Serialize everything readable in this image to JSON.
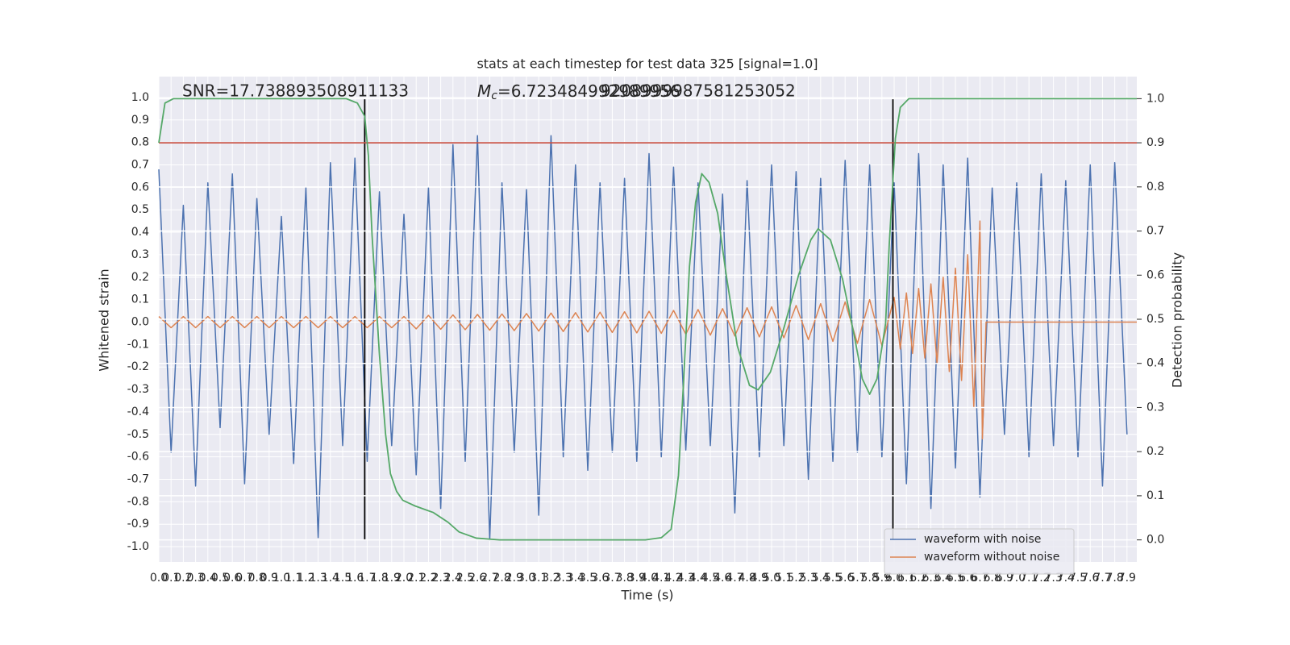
{
  "chart_data": {
    "type": "line",
    "title": "stats at each timestep for test data 325 [signal=1.0]",
    "x_label": "Time (s)",
    "y_label": "Whitened strain",
    "y2_label": "Detection probability",
    "annotations": [
      "SNR=17.738893508911133",
      "9208999987581253052"
    ],
    "mc_annotation": {
      "symbol": "M",
      "subscript": "c",
      "text": "=6.723484992989956"
    },
    "xlim": [
      0,
      7.98
    ],
    "ylim": [
      -1.068,
      1.093
    ],
    "y2lim": [
      -0.05,
      1.05
    ],
    "xticks": [
      {
        "value": 0,
        "label": "0.0"
      },
      0.1,
      0.2,
      0.3,
      0.4,
      0.5,
      0.6,
      0.7,
      0.8,
      0.9,
      {
        "value": 1,
        "label": "1.0"
      },
      1.1,
      1.2,
      1.3,
      1.4,
      1.5,
      1.6,
      1.7,
      1.8,
      1.9,
      {
        "value": 2,
        "label": "2.0"
      },
      2.1,
      2.2,
      2.3,
      2.4,
      2.5,
      2.6,
      2.7,
      2.8,
      2.9,
      {
        "value": 3,
        "label": "3.0"
      },
      3.1,
      3.2,
      3.3,
      3.4,
      3.5,
      3.6,
      3.7,
      3.8,
      3.9,
      {
        "value": 4,
        "label": "4.0"
      },
      4.1,
      4.2,
      4.3,
      4.4,
      4.5,
      4.6,
      4.7,
      4.8,
      4.9,
      {
        "value": 5,
        "label": "5.0"
      },
      5.1,
      5.2,
      5.3,
      5.4,
      5.5,
      5.6,
      5.7,
      5.8,
      5.9,
      {
        "value": 6,
        "label": "6.0"
      },
      6.1,
      6.2,
      6.3,
      6.4,
      6.5,
      6.6,
      6.7,
      6.8,
      6.9,
      {
        "value": 7,
        "label": "7.0"
      },
      7.1,
      7.2,
      7.3,
      7.4,
      7.5,
      7.6,
      7.7,
      7.8,
      7.9
    ],
    "yticks": [
      {
        "value": -1,
        "label": "-1.0"
      },
      -0.9,
      -0.8,
      -0.7,
      -0.6,
      -0.5,
      -0.4,
      -0.3,
      -0.2,
      -0.1,
      {
        "value": 0,
        "label": "0.0"
      },
      0.1,
      0.2,
      0.3,
      0.4,
      0.5,
      0.6,
      0.7,
      0.8,
      0.9,
      {
        "value": 1,
        "label": "1.0"
      }
    ],
    "y2ticks": [
      {
        "value": 0,
        "label": "0.0"
      },
      0.1,
      0.2,
      0.3,
      0.4,
      0.5,
      0.6,
      0.7,
      0.8,
      0.9,
      {
        "value": 1,
        "label": "1.0"
      }
    ],
    "grid": true,
    "legend": "lower right",
    "vlines": [
      1.68,
      5.99
    ],
    "vline_color": "#000000",
    "threshold": 0.9,
    "threshold_color": "#c0392b",
    "series": [
      {
        "name": "waveform with noise",
        "color": "#4c72b0",
        "x": [
          0,
          0.1,
          0.2,
          0.3,
          0.4,
          0.5,
          0.6,
          0.7,
          0.8,
          0.9,
          1,
          1.1,
          1.2,
          1.3,
          1.4,
          1.5,
          1.6,
          1.7,
          1.8,
          1.9,
          2,
          2.1,
          2.2,
          2.3,
          2.4,
          2.5,
          2.6,
          2.7,
          2.8,
          2.9,
          3,
          3.1,
          3.2,
          3.3,
          3.4,
          3.5,
          3.6,
          3.7,
          3.8,
          3.9,
          4,
          4.1,
          4.2,
          4.3,
          4.4,
          4.5,
          4.6,
          4.7,
          4.8,
          4.9,
          5,
          5.1,
          5.2,
          5.3,
          5.4,
          5.5,
          5.6,
          5.7,
          5.8,
          5.9,
          6,
          6.1,
          6.2,
          6.3,
          6.4,
          6.5,
          6.6,
          6.7,
          6.8,
          6.9,
          7,
          7.1,
          7.2,
          7.3,
          7.4,
          7.5,
          7.6,
          7.7,
          7.8,
          7.9
        ],
        "values": [
          0.68,
          -0.58,
          0.52,
          -0.73,
          0.62,
          -0.47,
          0.66,
          -0.72,
          0.55,
          -0.5,
          0.47,
          -0.63,
          0.6,
          -0.96,
          0.71,
          -0.55,
          0.73,
          -0.62,
          0.58,
          -0.55,
          0.48,
          -0.68,
          0.6,
          -0.83,
          0.79,
          -0.62,
          0.83,
          -0.97,
          0.62,
          -0.58,
          0.59,
          -0.86,
          0.83,
          -0.6,
          0.7,
          -0.66,
          0.62,
          -0.58,
          0.64,
          -0.62,
          0.75,
          -0.6,
          0.69,
          -0.57,
          0.62,
          -0.55,
          0.57,
          -0.85,
          0.63,
          -0.6,
          0.7,
          -0.55,
          0.67,
          -0.7,
          0.64,
          -0.62,
          0.72,
          -0.58,
          0.7,
          -0.6,
          0.62,
          -0.72,
          0.75,
          -0.83,
          0.7,
          -0.65,
          0.73,
          -0.78,
          0.6,
          -0.5,
          0.62,
          -0.6,
          0.66,
          -0.55,
          0.63,
          -0.6,
          0.7,
          -0.73,
          0.71,
          -0.5
        ]
      },
      {
        "name": "waveform without noise",
        "color": "#dd8452",
        "x": [
          0,
          0.1,
          0.2,
          0.3,
          0.4,
          0.5,
          0.6,
          0.7,
          0.8,
          0.9,
          1,
          1.1,
          1.2,
          1.3,
          1.4,
          1.5,
          1.6,
          1.7,
          1.8,
          1.9,
          2,
          2.1,
          2.2,
          2.3,
          2.4,
          2.5,
          2.6,
          2.7,
          2.8,
          2.9,
          3,
          3.1,
          3.2,
          3.3,
          3.4,
          3.5,
          3.6,
          3.7,
          3.8,
          3.9,
          4,
          4.1,
          4.2,
          4.3,
          4.4,
          4.5,
          4.6,
          4.7,
          4.8,
          4.9,
          5,
          5.1,
          5.2,
          5.3,
          5.4,
          5.5,
          5.6,
          5.7,
          5.8,
          5.9,
          6,
          6.05,
          6.1,
          6.15,
          6.2,
          6.25,
          6.3,
          6.35,
          6.4,
          6.45,
          6.5,
          6.55,
          6.6,
          6.65,
          6.7,
          6.72,
          6.75,
          7.98
        ],
        "values": [
          0.025,
          -0.025,
          0.025,
          -0.025,
          0.025,
          -0.025,
          0.025,
          -0.025,
          0.025,
          -0.025,
          0.025,
          -0.025,
          0.025,
          -0.025,
          0.025,
          -0.025,
          0.025,
          -0.025,
          0.025,
          -0.025,
          0.025,
          -0.03,
          0.03,
          -0.032,
          0.032,
          -0.034,
          0.034,
          -0.036,
          0.036,
          -0.038,
          0.038,
          -0.04,
          0.04,
          -0.042,
          0.042,
          -0.044,
          0.044,
          -0.046,
          0.046,
          -0.048,
          0.048,
          -0.05,
          0.052,
          -0.054,
          0.056,
          -0.058,
          0.06,
          -0.062,
          0.064,
          -0.066,
          0.068,
          -0.07,
          0.074,
          -0.078,
          0.082,
          -0.086,
          0.09,
          -0.095,
          0.1,
          -0.105,
          0.11,
          -0.12,
          0.13,
          -0.14,
          0.15,
          -0.16,
          0.17,
          -0.185,
          0.2,
          -0.22,
          0.24,
          -0.26,
          0.3,
          -0.38,
          0.45,
          -0.52,
          0,
          0
        ]
      },
      {
        "color": "#55a868",
        "axis": "y2",
        "x": [
          0,
          0.05,
          0.12,
          1.53,
          1.62,
          1.68,
          1.71,
          1.74,
          1.8,
          1.85,
          1.89,
          1.94,
          1.99,
          2.09,
          2.24,
          2.36,
          2.45,
          2.59,
          2.78,
          3.97,
          4.1,
          4.18,
          4.24,
          4.28,
          4.33,
          4.38,
          4.43,
          4.49,
          4.56,
          4.63,
          4.72,
          4.82,
          4.89,
          4.99,
          5.09,
          5.22,
          5.32,
          5.38,
          5.48,
          5.58,
          5.68,
          5.74,
          5.8,
          5.86,
          5.93,
          5.96,
          6.01,
          6.05,
          6.12,
          7.98
        ],
        "values": [
          0.9,
          0.99,
          1.0,
          1.0,
          0.99,
          0.96,
          0.87,
          0.69,
          0.42,
          0.24,
          0.15,
          0.11,
          0.09,
          0.077,
          0.062,
          0.04,
          0.018,
          0.004,
          0.0,
          0.0,
          0.005,
          0.024,
          0.146,
          0.35,
          0.62,
          0.765,
          0.83,
          0.81,
          0.74,
          0.6,
          0.44,
          0.35,
          0.34,
          0.38,
          0.47,
          0.6,
          0.68,
          0.705,
          0.68,
          0.59,
          0.455,
          0.365,
          0.33,
          0.365,
          0.49,
          0.67,
          0.91,
          0.98,
          1.0,
          1.0
        ]
      }
    ]
  }
}
